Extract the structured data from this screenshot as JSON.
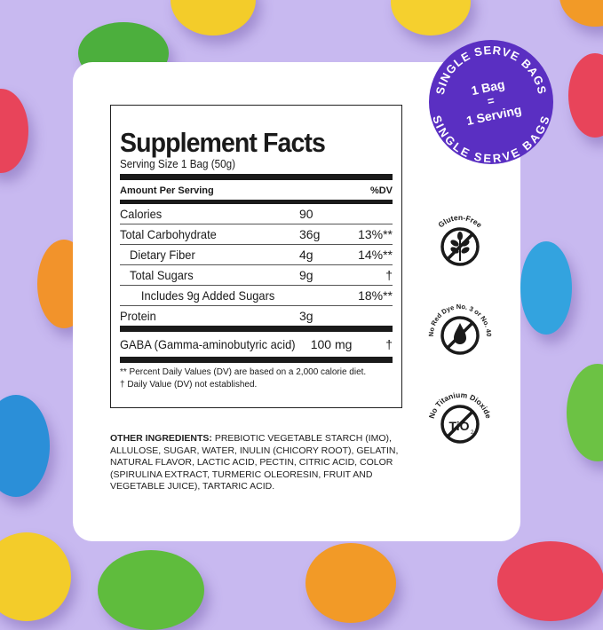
{
  "colors": {
    "background": "#c8b9f0",
    "badge": "#5a2fc2",
    "card": "#ffffff",
    "text": "#1a1a1a"
  },
  "badge": {
    "ring_text": "SINGLE SERVE BAGS",
    "line1": "1 Bag",
    "line2": "=",
    "line3": "1 Serving"
  },
  "facts": {
    "title": "Supplement Facts",
    "serving_size": "Serving Size 1 Bag (50g)",
    "header_amount": "Amount Per Serving",
    "header_dv": "%DV",
    "rows": [
      {
        "name": "Calories",
        "amount": "90",
        "dv": ""
      },
      {
        "name": "Total Carbohydrate",
        "amount": "36g",
        "dv": "13%**"
      },
      {
        "name": "Dietary Fiber",
        "amount": "4g",
        "dv": "14%**"
      },
      {
        "name": "Total Sugars",
        "amount": "9g",
        "dv": "†"
      },
      {
        "name": "Includes 9g Added Sugars",
        "amount": "",
        "dv": "18%**"
      },
      {
        "name": "Protein",
        "amount": "3g",
        "dv": ""
      },
      {
        "name": "GABA (Gamma-aminobutyric acid)",
        "amount": "100 mg",
        "dv": "†"
      }
    ],
    "footnote1": "** Percent Daily Values (DV) are based on a 2,000 calorie diet.",
    "footnote2": "† Daily Value (DV) not established."
  },
  "ingredients": {
    "label": "OTHER INGREDIENTS:",
    "text": " PREBIOTIC VEGETABLE STARCH (IMO), ALLULOSE, SUGAR, WATER, INULIN (CHICORY ROOT), GELATIN, NATURAL FLAVOR, LACTIC ACID, PECTIN, CITRIC ACID, COLOR (SPIRULINA EXTRACT, TURMERIC OLEORESIN, FRUIT AND VEGETABLE JUICE), TARTARIC ACID."
  },
  "icons": [
    {
      "name": "wheat-icon",
      "label": "Gluten-Free"
    },
    {
      "name": "drop-icon",
      "label": "No Red Dye No. 3 or No. 40"
    },
    {
      "name": "tio2-icon",
      "label": "No Titanium Dioxide",
      "glyph": "TiO"
    }
  ]
}
